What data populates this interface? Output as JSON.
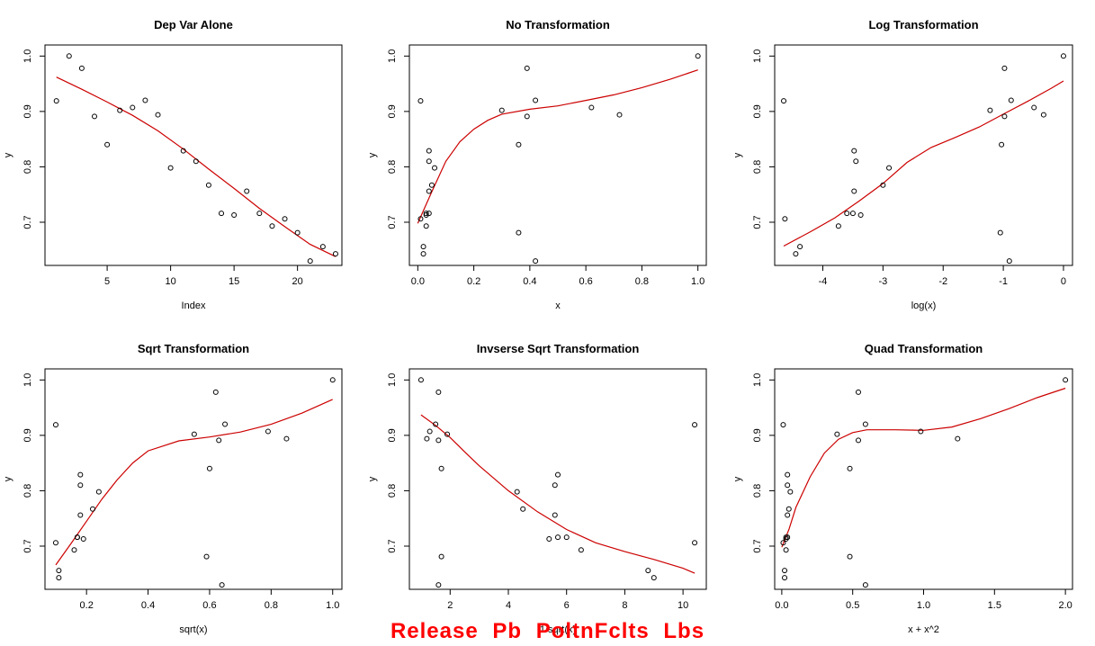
{
  "caption": "Release  Pb  PoltnFclts  Lbs",
  "colors": {
    "points": "#000000",
    "smoother": "#cc0000",
    "caption": "#ff0000"
  },
  "y_values": [
    0.919,
    1.0,
    0.978,
    0.891,
    0.84,
    0.902,
    0.907,
    0.92,
    0.894,
    0.798,
    0.829,
    0.81,
    0.767,
    0.716,
    0.713,
    0.756,
    0.716,
    0.693,
    0.706,
    0.681,
    0.63,
    0.656,
    0.643
  ],
  "chart_data": [
    {
      "type": "scatter",
      "title": "Dep Var Alone",
      "xlabel": "Index",
      "ylabel": "y",
      "xlim": [
        0.1,
        23.5
      ],
      "ylim": [
        0.622,
        1.02
      ],
      "xticks": [
        5,
        10,
        15,
        20
      ],
      "yticks": [
        0.7,
        0.8,
        0.9,
        1.0
      ],
      "x": [
        1,
        2,
        3,
        4,
        5,
        6,
        7,
        8,
        9,
        10,
        11,
        12,
        13,
        14,
        15,
        16,
        17,
        18,
        19,
        20,
        21,
        22,
        23
      ],
      "smooth": [
        [
          1,
          0.962
        ],
        [
          3,
          0.94
        ],
        [
          5,
          0.917
        ],
        [
          7,
          0.893
        ],
        [
          9,
          0.865
        ],
        [
          11,
          0.832
        ],
        [
          13,
          0.796
        ],
        [
          15,
          0.761
        ],
        [
          17,
          0.725
        ],
        [
          19,
          0.692
        ],
        [
          21,
          0.66
        ],
        [
          23,
          0.638
        ]
      ]
    },
    {
      "type": "scatter",
      "title": "No Transformation",
      "xlabel": "x",
      "ylabel": "y",
      "xlim": [
        -0.03,
        1.03
      ],
      "ylim": [
        0.622,
        1.02
      ],
      "xticks": [
        0.0,
        0.2,
        0.4,
        0.6,
        0.8,
        1.0
      ],
      "yticks": [
        0.7,
        0.8,
        0.9,
        1.0
      ],
      "x": [
        0.01,
        1.0,
        0.39,
        0.39,
        0.36,
        0.3,
        0.62,
        0.42,
        0.72,
        0.06,
        0.04,
        0.04,
        0.05,
        0.03,
        0.03,
        0.04,
        0.04,
        0.03,
        0.01,
        0.36,
        0.42,
        0.02,
        0.02
      ],
      "smooth": [
        [
          0.0,
          0.698
        ],
        [
          0.05,
          0.755
        ],
        [
          0.1,
          0.81
        ],
        [
          0.15,
          0.845
        ],
        [
          0.2,
          0.868
        ],
        [
          0.25,
          0.884
        ],
        [
          0.3,
          0.895
        ],
        [
          0.4,
          0.904
        ],
        [
          0.5,
          0.91
        ],
        [
          0.6,
          0.92
        ],
        [
          0.7,
          0.93
        ],
        [
          0.8,
          0.943
        ],
        [
          0.9,
          0.958
        ],
        [
          1.0,
          0.975
        ]
      ]
    },
    {
      "type": "scatter",
      "title": "Log Transformation",
      "xlabel": "log(x)",
      "ylabel": "y",
      "xlim": [
        -4.8,
        0.15
      ],
      "ylim": [
        0.622,
        1.02
      ],
      "xticks": [
        -4,
        -3,
        -2,
        -1,
        0
      ],
      "yticks": [
        0.7,
        0.8,
        0.9,
        1.0
      ],
      "x": [
        -4.65,
        0.0,
        -0.98,
        -0.98,
        -1.03,
        -1.22,
        -0.49,
        -0.87,
        -0.33,
        -2.9,
        -3.48,
        -3.45,
        -3.0,
        -3.6,
        -3.37,
        -3.48,
        -3.5,
        -3.74,
        -4.63,
        -1.05,
        -0.9,
        -4.38,
        -4.45
      ],
      "smooth": [
        [
          -4.65,
          0.657
        ],
        [
          -4.2,
          0.683
        ],
        [
          -3.8,
          0.708
        ],
        [
          -3.4,
          0.738
        ],
        [
          -3.0,
          0.77
        ],
        [
          -2.6,
          0.808
        ],
        [
          -2.2,
          0.835
        ],
        [
          -1.8,
          0.853
        ],
        [
          -1.4,
          0.872
        ],
        [
          -1.0,
          0.895
        ],
        [
          -0.6,
          0.918
        ],
        [
          -0.2,
          0.942
        ],
        [
          0.0,
          0.955
        ]
      ]
    },
    {
      "type": "scatter",
      "title": "Sqrt Transformation",
      "xlabel": "sqrt(x)",
      "ylabel": "y",
      "xlim": [
        0.065,
        1.03
      ],
      "ylim": [
        0.622,
        1.02
      ],
      "xticks": [
        0.2,
        0.4,
        0.6,
        0.8,
        1.0
      ],
      "yticks": [
        0.7,
        0.8,
        0.9,
        1.0
      ],
      "x": [
        0.1,
        1.0,
        0.62,
        0.63,
        0.6,
        0.55,
        0.79,
        0.65,
        0.85,
        0.24,
        0.18,
        0.18,
        0.22,
        0.17,
        0.19,
        0.18,
        0.17,
        0.16,
        0.1,
        0.59,
        0.64,
        0.11,
        0.11
      ],
      "smooth": [
        [
          0.1,
          0.666
        ],
        [
          0.15,
          0.705
        ],
        [
          0.2,
          0.745
        ],
        [
          0.25,
          0.785
        ],
        [
          0.3,
          0.82
        ],
        [
          0.35,
          0.85
        ],
        [
          0.4,
          0.872
        ],
        [
          0.5,
          0.89
        ],
        [
          0.6,
          0.897
        ],
        [
          0.7,
          0.906
        ],
        [
          0.8,
          0.92
        ],
        [
          0.9,
          0.94
        ],
        [
          1.0,
          0.965
        ]
      ]
    },
    {
      "type": "scatter",
      "title": "Invserse Sqrt Transformation",
      "xlabel": "1/sqrt(x)",
      "ylabel": "y",
      "xlim": [
        0.6,
        10.8
      ],
      "ylim": [
        0.622,
        1.02
      ],
      "xticks": [
        2,
        4,
        6,
        8,
        10
      ],
      "yticks": [
        0.7,
        0.8,
        0.9,
        1.0
      ],
      "x": [
        10.4,
        1.0,
        1.6,
        1.6,
        1.7,
        1.9,
        1.3,
        1.5,
        1.2,
        4.3,
        5.7,
        5.6,
        4.5,
        6.0,
        5.4,
        5.6,
        5.7,
        6.5,
        10.4,
        1.7,
        1.6,
        8.8,
        9.0
      ],
      "smooth": [
        [
          1.0,
          0.937
        ],
        [
          1.5,
          0.918
        ],
        [
          2.0,
          0.896
        ],
        [
          2.5,
          0.87
        ],
        [
          3.0,
          0.845
        ],
        [
          4.0,
          0.8
        ],
        [
          5.0,
          0.762
        ],
        [
          6.0,
          0.73
        ],
        [
          7.0,
          0.706
        ],
        [
          8.0,
          0.69
        ],
        [
          9.0,
          0.676
        ],
        [
          10.0,
          0.66
        ],
        [
          10.4,
          0.651
        ]
      ]
    },
    {
      "type": "scatter",
      "title": "Quad Transformation",
      "xlabel": "x + x^2",
      "ylabel": "y",
      "xlim": [
        -0.05,
        2.05
      ],
      "ylim": [
        0.622,
        1.02
      ],
      "xticks": [
        0.0,
        0.5,
        1.0,
        1.5,
        2.0
      ],
      "yticks": [
        0.7,
        0.8,
        0.9,
        1.0
      ],
      "x": [
        0.01,
        2.0,
        0.54,
        0.54,
        0.48,
        0.39,
        0.98,
        0.59,
        1.24,
        0.06,
        0.04,
        0.04,
        0.05,
        0.03,
        0.03,
        0.04,
        0.04,
        0.03,
        0.01,
        0.48,
        0.59,
        0.02,
        0.02
      ],
      "smooth": [
        [
          0.0,
          0.698
        ],
        [
          0.05,
          0.73
        ],
        [
          0.1,
          0.77
        ],
        [
          0.2,
          0.825
        ],
        [
          0.3,
          0.868
        ],
        [
          0.4,
          0.893
        ],
        [
          0.5,
          0.905
        ],
        [
          0.6,
          0.91
        ],
        [
          0.8,
          0.91
        ],
        [
          1.0,
          0.909
        ],
        [
          1.2,
          0.915
        ],
        [
          1.4,
          0.93
        ],
        [
          1.6,
          0.948
        ],
        [
          1.8,
          0.968
        ],
        [
          2.0,
          0.985
        ]
      ]
    }
  ]
}
